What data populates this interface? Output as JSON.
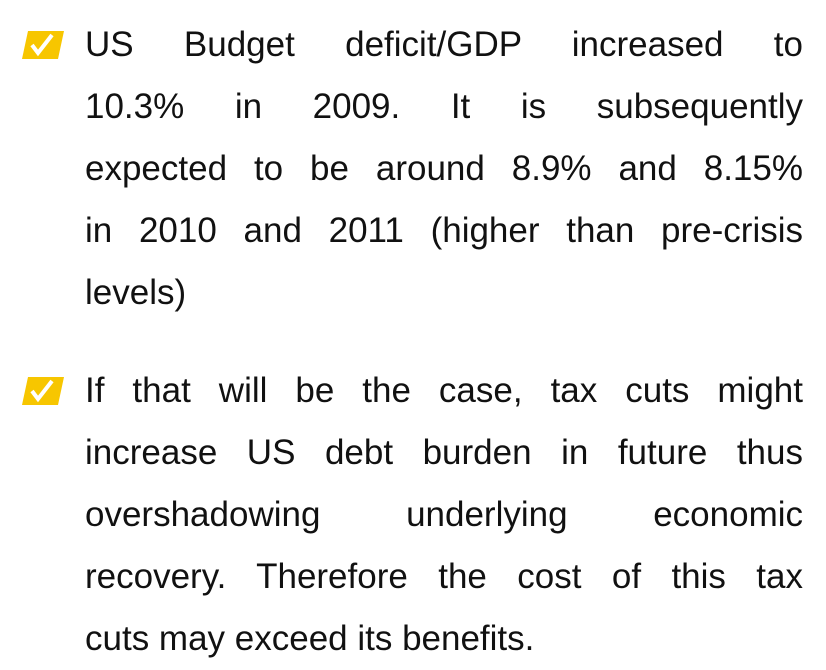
{
  "bullets": [
    {
      "lines": [
        "US Budget deficit/GDP increased to",
        "10.3% in 2009. It is subsequently",
        "expected to be around 8.9% and 8.15%",
        "in 2010 and 2011 (higher than pre-crisis",
        "levels)"
      ]
    },
    {
      "lines": [
        "If that will be the case, tax cuts might",
        "increase US debt burden in future thus",
        "overshadowing underlying economic",
        "recovery.  Therefore the cost of this tax",
        "cuts may exceed its benefits."
      ]
    }
  ]
}
